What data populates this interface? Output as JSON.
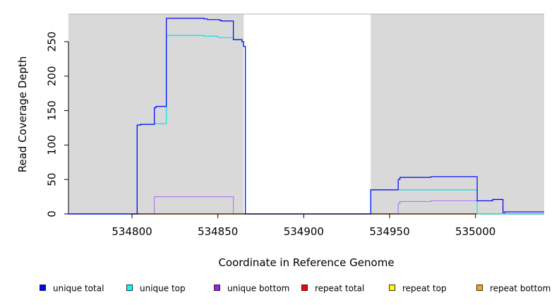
{
  "chart_data": {
    "type": "line",
    "title": "",
    "xlabel": "Coordinate in Reference Genome",
    "ylabel": "Read Coverage Depth",
    "xlim": [
      534763,
      535040
    ],
    "ylim": [
      0,
      290
    ],
    "xticks": [
      534800,
      534850,
      534900,
      534950,
      535000
    ],
    "xtick_labels": [
      "534800",
      "534850",
      "534900",
      "534950",
      "535000"
    ],
    "yticks": [
      0,
      50,
      100,
      150,
      200,
      250
    ],
    "ytick_labels": [
      "0",
      "50",
      "100",
      "150",
      "200",
      "250"
    ],
    "grid": false,
    "legend_position": "bottom",
    "shaded_regions": [
      {
        "x0": 534763,
        "x1": 534865,
        "color": "#d9d9d9"
      },
      {
        "x0": 534939,
        "x1": 535040,
        "color": "#d9d9d9"
      }
    ],
    "series": [
      {
        "name": "unique total",
        "color": "#0000ff",
        "points": [
          [
            534763,
            0
          ],
          [
            534803,
            0
          ],
          [
            534803,
            129
          ],
          [
            534805,
            129
          ],
          [
            534805,
            130
          ],
          [
            534813,
            130
          ],
          [
            534813,
            154
          ],
          [
            534814,
            154
          ],
          [
            534814,
            156
          ],
          [
            534820,
            156
          ],
          [
            534820,
            284
          ],
          [
            534842,
            284
          ],
          [
            534842,
            283
          ],
          [
            534844,
            283
          ],
          [
            534844,
            282
          ],
          [
            534851,
            282
          ],
          [
            534851,
            281
          ],
          [
            534852,
            281
          ],
          [
            534852,
            280
          ],
          [
            534859,
            280
          ],
          [
            534859,
            253
          ],
          [
            534864,
            253
          ],
          [
            534864,
            250
          ],
          [
            534865,
            250
          ],
          [
            534865,
            243
          ],
          [
            534866,
            243
          ],
          [
            534866,
            0
          ],
          [
            534939,
            0
          ],
          [
            534939,
            35
          ],
          [
            534955,
            35
          ],
          [
            534955,
            50
          ],
          [
            534956,
            50
          ],
          [
            534956,
            53
          ],
          [
            534974,
            53
          ],
          [
            534974,
            54
          ],
          [
            535001,
            54
          ],
          [
            535001,
            19
          ],
          [
            535010,
            19
          ],
          [
            535010,
            21
          ],
          [
            535016,
            21
          ],
          [
            535016,
            2
          ],
          [
            535017,
            2
          ],
          [
            535017,
            3
          ],
          [
            535040,
            3
          ]
        ]
      },
      {
        "name": "unique top",
        "color": "#00e5ee",
        "points": [
          [
            534763,
            0
          ],
          [
            534803,
            0
          ],
          [
            534803,
            129
          ],
          [
            534805,
            129
          ],
          [
            534805,
            130
          ],
          [
            534813,
            130
          ],
          [
            534813,
            131
          ],
          [
            534820,
            131
          ],
          [
            534820,
            259
          ],
          [
            534842,
            259
          ],
          [
            534842,
            258
          ],
          [
            534850,
            258
          ],
          [
            534850,
            256
          ],
          [
            534859,
            256
          ],
          [
            534859,
            253
          ],
          [
            534864,
            253
          ],
          [
            534864,
            250
          ],
          [
            534865,
            250
          ],
          [
            534865,
            243
          ],
          [
            534866,
            243
          ],
          [
            534866,
            0
          ],
          [
            534939,
            0
          ],
          [
            534939,
            35
          ],
          [
            535001,
            35
          ],
          [
            535001,
            0
          ],
          [
            535040,
            0
          ]
        ]
      },
      {
        "name": "unique bottom",
        "color": "#b57bee",
        "points": [
          [
            534763,
            0
          ],
          [
            534813,
            0
          ],
          [
            534813,
            25
          ],
          [
            534859,
            25
          ],
          [
            534859,
            0
          ],
          [
            534955,
            0
          ],
          [
            534955,
            15
          ],
          [
            534956,
            15
          ],
          [
            534956,
            18
          ],
          [
            534974,
            18
          ],
          [
            534974,
            19
          ],
          [
            535001,
            19
          ],
          [
            535001,
            19
          ],
          [
            535010,
            19
          ],
          [
            535010,
            21
          ],
          [
            535016,
            21
          ],
          [
            535016,
            2
          ],
          [
            535017,
            2
          ],
          [
            535017,
            3
          ],
          [
            535040,
            3
          ]
        ]
      },
      {
        "name": "repeat total",
        "color": "#ff0000",
        "points": [
          [
            534763,
            0
          ],
          [
            535040,
            0
          ]
        ]
      },
      {
        "name": "repeat top",
        "color": "#ffff00",
        "points": [
          [
            534763,
            0
          ],
          [
            535040,
            0
          ]
        ]
      },
      {
        "name": "repeat bottom",
        "color": "#ffa500",
        "points": [
          [
            534763,
            0
          ],
          [
            535040,
            0
          ]
        ]
      }
    ],
    "legend": [
      {
        "label": "unique total",
        "color": "#0000ff"
      },
      {
        "label": "unique top",
        "color": "#00ffff"
      },
      {
        "label": "unique bottom",
        "color": "#a020f0"
      },
      {
        "label": "repeat total",
        "color": "#ff0000"
      },
      {
        "label": "repeat top",
        "color": "#ffff00"
      },
      {
        "label": "repeat bottom",
        "color": "#ffa500"
      }
    ]
  }
}
